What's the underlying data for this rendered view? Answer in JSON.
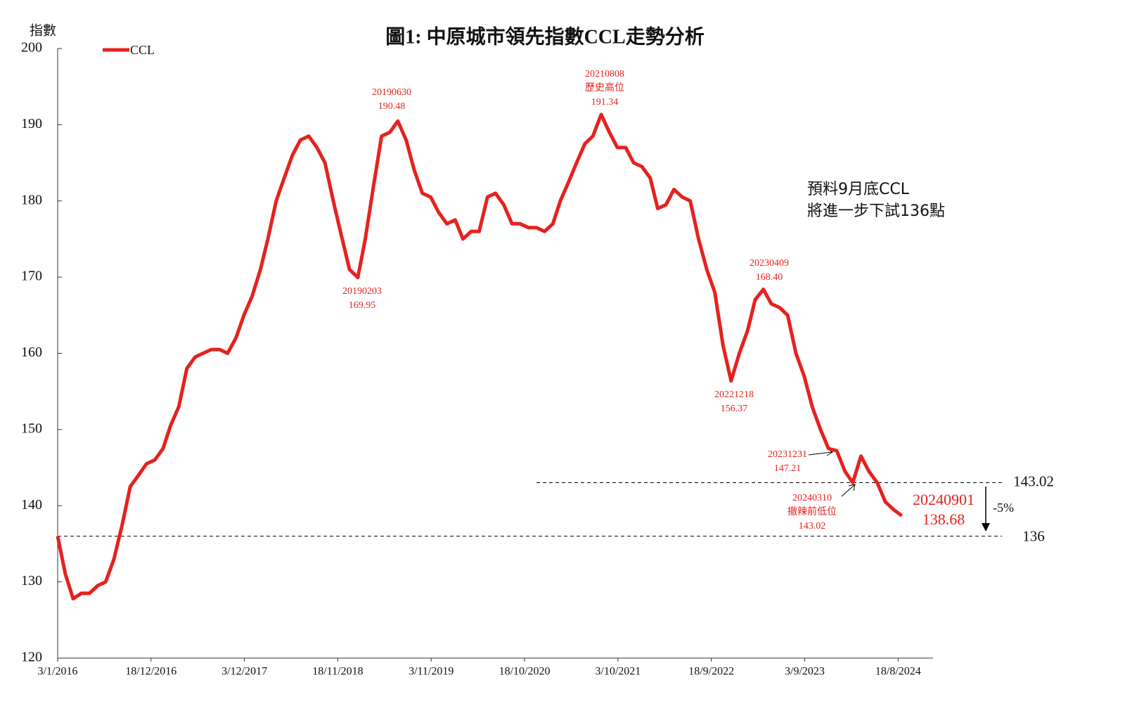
{
  "chart_data": {
    "type": "line",
    "title": "圖1: 中原城市領先指數CCL走勢分析",
    "y_label": "指數",
    "x": [
      "3/1/2016",
      "1/2/2016",
      "1/3/2016",
      "1/4/2016",
      "1/5/2016",
      "1/6/2016",
      "1/7/2016",
      "1/8/2016",
      "1/9/2016",
      "1/10/2016",
      "1/11/2016",
      "1/12/2016",
      "1/1/2017",
      "1/2/2017",
      "1/3/2017",
      "1/4/2017",
      "1/5/2017",
      "1/6/2017",
      "1/7/2017",
      "1/8/2017",
      "1/9/2017",
      "1/10/2017",
      "1/11/2017",
      "1/12/2017",
      "1/1/2018",
      "1/2/2018",
      "1/3/2018",
      "1/4/2018",
      "1/5/2018",
      "1/6/2018",
      "1/7/2018",
      "1/8/2018",
      "1/9/2018",
      "1/10/2018",
      "1/11/2018",
      "1/12/2018",
      "1/1/2019",
      "1/2/2019",
      "1/3/2019",
      "1/4/2019",
      "1/5/2019",
      "1/6/2019",
      "1/7/2019",
      "1/8/2019",
      "1/9/2019",
      "1/10/2019",
      "1/11/2019",
      "1/12/2019",
      "1/1/2020",
      "1/2/2020",
      "1/3/2020",
      "1/4/2020",
      "1/5/2020",
      "1/6/2020",
      "1/7/2020",
      "1/8/2020",
      "1/9/2020",
      "1/10/2020",
      "1/11/2020",
      "1/12/2020",
      "1/1/2021",
      "1/2/2021",
      "1/3/2021",
      "1/4/2021",
      "1/5/2021",
      "1/6/2021",
      "1/7/2021",
      "1/8/2021",
      "1/9/2021",
      "1/10/2021",
      "1/11/2021",
      "1/12/2021",
      "1/1/2022",
      "1/2/2022",
      "1/3/2022",
      "1/4/2022",
      "1/5/2022",
      "1/6/2022",
      "1/7/2022",
      "1/8/2022",
      "1/9/2022",
      "1/10/2022",
      "1/11/2022",
      "1/12/2022",
      "1/1/2023",
      "1/2/2023",
      "1/3/2023",
      "1/4/2023",
      "1/5/2023",
      "1/6/2023",
      "1/7/2023",
      "1/8/2023",
      "1/9/2023",
      "1/10/2023",
      "1/11/2023",
      "1/12/2023",
      "1/1/2024",
      "1/2/2024",
      "1/3/2024",
      "1/4/2024",
      "1/5/2024",
      "1/6/2024",
      "1/7/2024",
      "1/8/2024",
      "1/9/2024"
    ],
    "series": [
      {
        "name": "CCL",
        "color": "#e5221f",
        "values": [
          136,
          131,
          127.8,
          128.5,
          128.5,
          129.5,
          130,
          133,
          137.5,
          142.5,
          144,
          145.5,
          146,
          147.5,
          150.5,
          153,
          158,
          159.5,
          160,
          160.5,
          160.5,
          160,
          162,
          165,
          167.5,
          171,
          175,
          180,
          183,
          186,
          188,
          188.5,
          187,
          185,
          180,
          175.5,
          171,
          169.95,
          175,
          182,
          188.5,
          189,
          190.48,
          188,
          184,
          181,
          180.5,
          178.5,
          177,
          177.5,
          175,
          176,
          176,
          180.5,
          181,
          179.5,
          177,
          177,
          176.5,
          176.5,
          176,
          177,
          180,
          182.5,
          185,
          187.5,
          188.5,
          191.34,
          189,
          187,
          187,
          185,
          184.5,
          183,
          179,
          179.5,
          181.5,
          180.5,
          180,
          175,
          171,
          168,
          161,
          156.37,
          160,
          163,
          167,
          168.4,
          166.5,
          166,
          165,
          160,
          157,
          153,
          150,
          147.5,
          147.21,
          144.5,
          143.02,
          146.5,
          144.5,
          143,
          140.5,
          139.5,
          138.68
        ]
      }
    ],
    "xlim": [
      "3/1/2016",
      "27/12/2024"
    ],
    "xticks": [
      "3/1/2016",
      "18/12/2016",
      "3/12/2017",
      "18/11/2018",
      "3/11/2019",
      "18/10/2020",
      "3/10/2021",
      "18/9/2022",
      "3/9/2023",
      "18/8/2024"
    ],
    "ylim": [
      120,
      200
    ],
    "yticks": [
      120,
      130,
      140,
      150,
      160,
      170,
      180,
      190,
      200
    ],
    "reference_lines": [
      143.02,
      136
    ],
    "change_label": "-5%",
    "forecast_note": [
      "預料9月底CCL",
      "將進一步下試136點"
    ],
    "annotations": [
      {
        "lines": [
          "20190630",
          "190.48"
        ]
      },
      {
        "lines": [
          "20190203",
          "169.95"
        ]
      },
      {
        "lines": [
          "20210808",
          "歷史高位",
          "191.34"
        ]
      },
      {
        "lines": [
          "20230409",
          "168.40"
        ]
      },
      {
        "lines": [
          "20221218",
          "156.37"
        ]
      },
      {
        "lines": [
          "20231231",
          "147.21"
        ]
      },
      {
        "lines": [
          "20240310",
          "撤辣前低位",
          "143.02"
        ]
      },
      {
        "lines": [
          "20240901",
          "138.68"
        ]
      }
    ]
  }
}
